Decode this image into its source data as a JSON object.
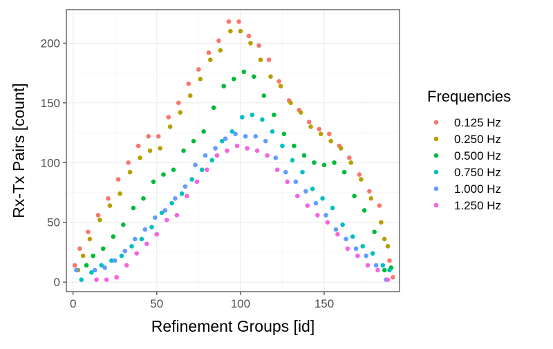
{
  "chart_data": {
    "type": "scatter",
    "title": "",
    "xlabel": "Refinement Groups [id]",
    "ylabel": "Rx-Tx Pairs [count]",
    "xlim": [
      -4,
      195
    ],
    "ylim": [
      -8,
      228
    ],
    "xticks": [
      0,
      50,
      100,
      150
    ],
    "yticks": [
      0,
      50,
      100,
      150,
      200
    ],
    "grid": true,
    "legend": {
      "title": "Frequencies",
      "position": "right"
    },
    "series": [
      {
        "name": "0.125 Hz",
        "color": "#F8766D",
        "points": [
          [
            1,
            14
          ],
          [
            4,
            28
          ],
          [
            9,
            42
          ],
          [
            15,
            56
          ],
          [
            21,
            70
          ],
          [
            27,
            86
          ],
          [
            33,
            100
          ],
          [
            39,
            114
          ],
          [
            45,
            122
          ],
          [
            51,
            122
          ],
          [
            57,
            138
          ],
          [
            63,
            150
          ],
          [
            69,
            166
          ],
          [
            75,
            178
          ],
          [
            81,
            192
          ],
          [
            87,
            202
          ],
          [
            93,
            218
          ],
          [
            99,
            218
          ],
          [
            105,
            206
          ],
          [
            111,
            198
          ],
          [
            117,
            186
          ],
          [
            123,
            168
          ],
          [
            129,
            152
          ],
          [
            135,
            144
          ],
          [
            141,
            134
          ],
          [
            147,
            128
          ],
          [
            153,
            124
          ],
          [
            159,
            114
          ],
          [
            165,
            104
          ],
          [
            171,
            90
          ],
          [
            177,
            76
          ],
          [
            183,
            64
          ],
          [
            189,
            18
          ],
          [
            191,
            4
          ]
        ]
      },
      {
        "name": "0.250 Hz",
        "color": "#B79F00",
        "points": [
          [
            3,
            10
          ],
          [
            6,
            22
          ],
          [
            10,
            36
          ],
          [
            16,
            52
          ],
          [
            22,
            64
          ],
          [
            28,
            74
          ],
          [
            34,
            92
          ],
          [
            40,
            104
          ],
          [
            46,
            110
          ],
          [
            52,
            112
          ],
          [
            58,
            130
          ],
          [
            64,
            142
          ],
          [
            70,
            156
          ],
          [
            76,
            170
          ],
          [
            82,
            186
          ],
          [
            88,
            194
          ],
          [
            94,
            210
          ],
          [
            100,
            210
          ],
          [
            106,
            200
          ],
          [
            112,
            186
          ],
          [
            118,
            172
          ],
          [
            124,
            164
          ],
          [
            130,
            150
          ],
          [
            136,
            142
          ],
          [
            142,
            130
          ],
          [
            148,
            124
          ],
          [
            154,
            118
          ],
          [
            160,
            112
          ],
          [
            166,
            100
          ],
          [
            172,
            86
          ],
          [
            178,
            70
          ],
          [
            184,
            50
          ],
          [
            186,
            36
          ],
          [
            188,
            30
          ],
          [
            190,
            12
          ]
        ]
      },
      {
        "name": "0.500 Hz",
        "color": "#00BA38",
        "points": [
          [
            2,
            10
          ],
          [
            8,
            14
          ],
          [
            12,
            22
          ],
          [
            18,
            28
          ],
          [
            24,
            38
          ],
          [
            30,
            48
          ],
          [
            36,
            62
          ],
          [
            42,
            70
          ],
          [
            48,
            84
          ],
          [
            54,
            90
          ],
          [
            60,
            94
          ],
          [
            66,
            110
          ],
          [
            72,
            118
          ],
          [
            78,
            126
          ],
          [
            84,
            146
          ],
          [
            90,
            164
          ],
          [
            96,
            170
          ],
          [
            102,
            176
          ],
          [
            108,
            172
          ],
          [
            114,
            156
          ],
          [
            120,
            140
          ],
          [
            126,
            124
          ],
          [
            132,
            114
          ],
          [
            138,
            106
          ],
          [
            144,
            100
          ],
          [
            150,
            98
          ],
          [
            156,
            100
          ],
          [
            162,
            92
          ],
          [
            168,
            72
          ],
          [
            174,
            60
          ],
          [
            180,
            42
          ],
          [
            186,
            10
          ],
          [
            190,
            12
          ]
        ]
      },
      {
        "name": "0.750 Hz",
        "color": "#00BFC4",
        "points": [
          [
            5,
            2
          ],
          [
            11,
            8
          ],
          [
            17,
            14
          ],
          [
            23,
            18
          ],
          [
            29,
            22
          ],
          [
            35,
            30
          ],
          [
            41,
            36
          ],
          [
            47,
            46
          ],
          [
            53,
            58
          ],
          [
            59,
            66
          ],
          [
            65,
            74
          ],
          [
            71,
            86
          ],
          [
            77,
            94
          ],
          [
            83,
            102
          ],
          [
            89,
            118
          ],
          [
            95,
            126
          ],
          [
            101,
            138
          ],
          [
            107,
            140
          ],
          [
            113,
            136
          ],
          [
            119,
            126
          ],
          [
            125,
            114
          ],
          [
            131,
            102
          ],
          [
            137,
            92
          ],
          [
            143,
            78
          ],
          [
            149,
            70
          ],
          [
            155,
            62
          ],
          [
            161,
            48
          ],
          [
            167,
            38
          ],
          [
            173,
            30
          ],
          [
            179,
            24
          ],
          [
            185,
            14
          ],
          [
            189,
            10
          ]
        ]
      },
      {
        "name": "1.000 Hz",
        "color": "#619CFF",
        "points": [
          [
            2,
            10
          ],
          [
            13,
            10
          ],
          [
            19,
            12
          ],
          [
            25,
            18
          ],
          [
            31,
            26
          ],
          [
            37,
            36
          ],
          [
            43,
            44
          ],
          [
            49,
            54
          ],
          [
            55,
            60
          ],
          [
            61,
            70
          ],
          [
            67,
            80
          ],
          [
            73,
            98
          ],
          [
            79,
            106
          ],
          [
            85,
            112
          ],
          [
            91,
            120
          ],
          [
            97,
            124
          ],
          [
            103,
            122
          ],
          [
            109,
            122
          ],
          [
            115,
            118
          ],
          [
            121,
            104
          ],
          [
            127,
            92
          ],
          [
            133,
            84
          ],
          [
            139,
            76
          ],
          [
            145,
            66
          ],
          [
            151,
            56
          ],
          [
            157,
            44
          ],
          [
            163,
            36
          ],
          [
            169,
            28
          ],
          [
            175,
            22
          ],
          [
            181,
            14
          ],
          [
            187,
            2
          ]
        ]
      },
      {
        "name": "1.250 Hz",
        "color": "#F564E3",
        "points": [
          [
            14,
            2
          ],
          [
            20,
            2
          ],
          [
            26,
            4
          ],
          [
            32,
            14
          ],
          [
            38,
            24
          ],
          [
            44,
            32
          ],
          [
            50,
            40
          ],
          [
            56,
            52
          ],
          [
            62,
            56
          ],
          [
            68,
            72
          ],
          [
            74,
            84
          ],
          [
            80,
            94
          ],
          [
            86,
            106
          ],
          [
            92,
            110
          ],
          [
            98,
            114
          ],
          [
            104,
            112
          ],
          [
            110,
            110
          ],
          [
            116,
            106
          ],
          [
            122,
            94
          ],
          [
            128,
            84
          ],
          [
            134,
            72
          ],
          [
            140,
            64
          ],
          [
            146,
            56
          ],
          [
            152,
            50
          ],
          [
            158,
            40
          ],
          [
            164,
            28
          ],
          [
            170,
            22
          ],
          [
            176,
            14
          ],
          [
            182,
            10
          ],
          [
            188,
            2
          ]
        ]
      }
    ]
  }
}
